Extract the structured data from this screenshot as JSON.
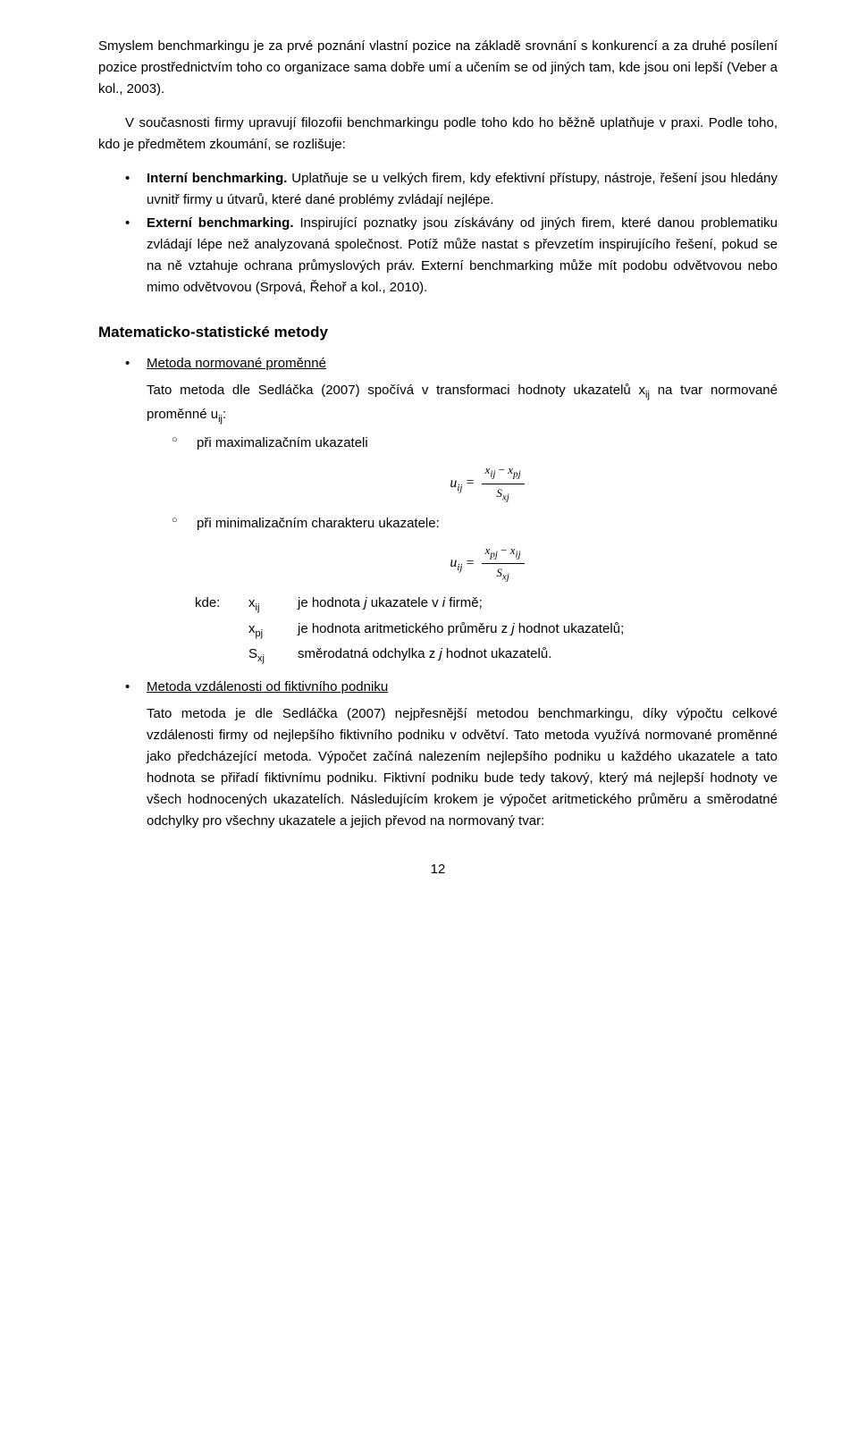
{
  "intro": {
    "p1": "Smyslem benchmarkingu je za prvé poznání vlastní pozice na základě srovnání s konkurencí a za druhé posílení pozice prostřednictvím toho co organizace sama dobře umí a učením se od jiných tam, kde jsou oni lepší (Veber a kol., 2003).",
    "p2_pre": "V současnosti firmy upravují filozofii benchmarkingu podle toho kdo ho běžně uplatňuje v praxi. Podle toho, kdo je předmětem zkoumání, se rozlišuje:"
  },
  "bullets1": {
    "b1_bold": "Interní benchmarking.",
    "b1_text": " Uplatňuje se u velkých firem, kdy efektivní přístupy, nástroje, řešení jsou hledány uvnitř firmy u útvarů, které dané problémy zvládají nejlépe.",
    "b2_bold": "Externí benchmarking.",
    "b2_text": " Inspirující poznatky jsou získávány od jiných firem, které danou problematiku zvládají lépe než analyzovaná společnost. Potíž může nastat s převzetím inspirujícího řešení, pokud se na ně vztahuje ochrana průmyslových práv. Externí benchmarking může mít podobu odvětvovou nebo mimo odvětvovou (Srpová, Řehoř a kol., 2010)."
  },
  "heading": "Matematicko-statistické metody",
  "methods": {
    "m1_title": "Metoda normované proměnné",
    "m1_p1_a": "Tato metoda dle Sedláčka (2007) spočívá v transformaci hodnoty ukazatelů x",
    "m1_p1_b": " na tvar normované proměnné u",
    "m1_p1_c": ":",
    "m1_sub1": "při maximalizačním ukazateli",
    "m1_sub2": "při minimalizačním charakteru ukazatele:",
    "def_kde": "kde:",
    "def_xij_a": "je hodnota ",
    "def_xij_b": " ukazatele v ",
    "def_xij_c": " firmě;",
    "def_xpj_a": "je hodnota aritmetického průměru z ",
    "def_xpj_b": " hodnot ukazatelů;",
    "def_sxj_a": "směrodatná odchylka z ",
    "def_sxj_b": " hodnot ukazatelů.",
    "m2_title": "Metoda vzdálenosti od fiktivního podniku",
    "m2_text": "Tato metoda je dle Sedláčka (2007) nejpřesnější metodou benchmarkingu, díky výpočtu celkové vzdálenosti firmy od nejlepšího fiktivního podniku v odvětví. Tato metoda využívá normované proměnné jako předcházející metoda. Výpočet začíná nalezením nejlepšího podniku u každého ukazatele a tato hodnota se přiřadí fiktivnímu podniku. Fiktivní podniku bude tedy takový, který má nejlepší hodnoty ve všech hodnocených ukazatelích. Následujícím krokem je výpočet aritmetického průměru a směrodatné odchylky pro všechny ukazatele a jejich převod na normovaný tvar:"
  },
  "symbols": {
    "xij": "x",
    "xij_sub": "ij",
    "uij": "u",
    "uij_sub": "ij",
    "xpj": "x",
    "xpj_sub": "pj",
    "sxj": "S",
    "sxj_sub": "xj",
    "j": "j",
    "i": "i"
  },
  "page_number": "12"
}
